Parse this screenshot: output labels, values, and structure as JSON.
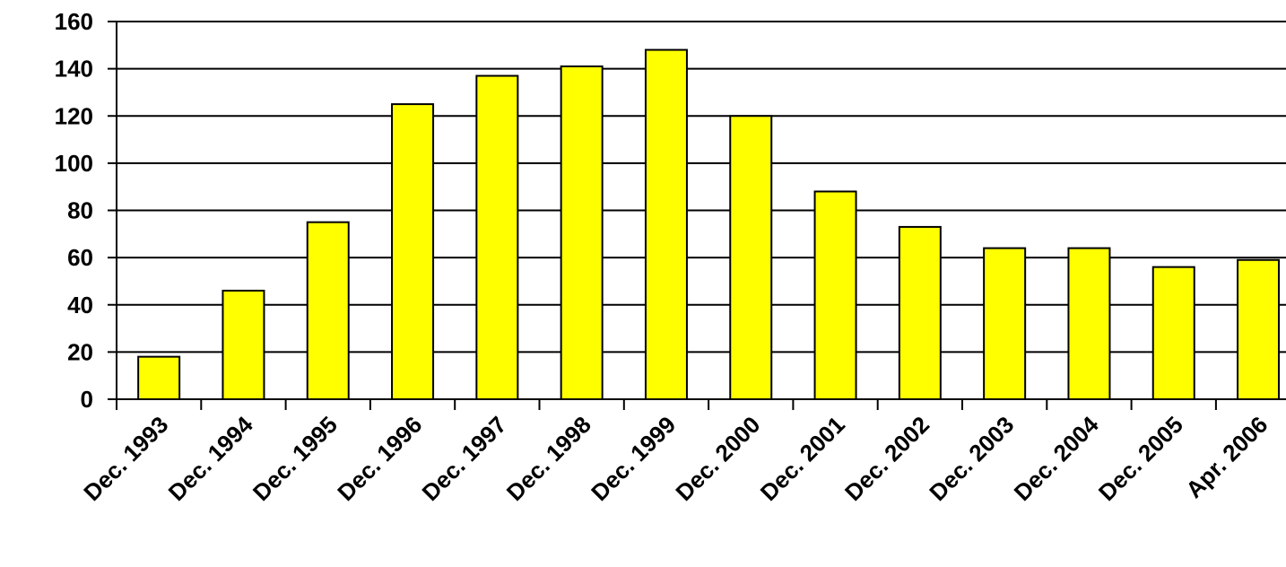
{
  "chart_data": {
    "type": "bar",
    "categories": [
      "Dec. 1993",
      "Dec. 1994",
      "Dec. 1995",
      "Dec. 1996",
      "Dec. 1997",
      "Dec. 1998",
      "Dec. 1999",
      "Dec. 2000",
      "Dec. 2001",
      "Dec. 2002",
      "Dec. 2003",
      "Dec. 2004",
      "Dec. 2005",
      "Apr. 2006"
    ],
    "values": [
      18,
      46,
      75,
      125,
      137,
      141,
      148,
      120,
      88,
      73,
      64,
      64,
      56,
      59
    ],
    "yticks": [
      "0",
      "20",
      "40",
      "60",
      "80",
      "100",
      "120",
      "140",
      "160"
    ],
    "ylim": [
      0,
      160
    ],
    "grid": true,
    "bar_color": "#ffff00",
    "bar_stroke": "#000000",
    "title": "",
    "xlabel": "",
    "ylabel": ""
  }
}
